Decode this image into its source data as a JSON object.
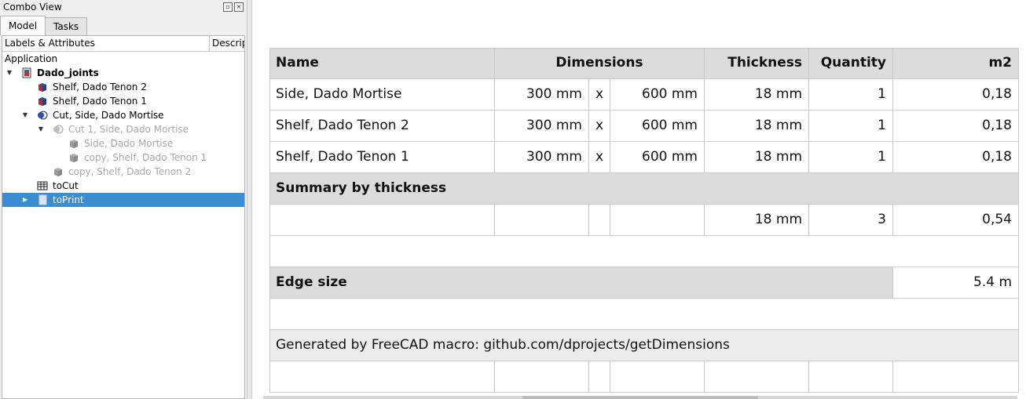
{
  "combo": {
    "title": "Combo View",
    "tabs": [
      {
        "label": "Model"
      },
      {
        "label": "Tasks"
      }
    ],
    "tree_headers": [
      "Labels & Attributes",
      "Description"
    ],
    "tree_items": [
      {
        "label": "Application",
        "depth": 0,
        "icon": "none",
        "arrow": "none",
        "state": "normal"
      },
      {
        "label": "Dado_joints",
        "depth": 1,
        "icon": "document-icon",
        "arrow": "expanded",
        "state": "bold"
      },
      {
        "label": "Shelf, Dado Tenon 2",
        "depth": 2,
        "icon": "part-box-icon",
        "arrow": "none",
        "state": "normal"
      },
      {
        "label": "Shelf, Dado Tenon 1",
        "depth": 2,
        "icon": "part-box-icon",
        "arrow": "none",
        "state": "normal"
      },
      {
        "label": "Cut, Side, Dado Mortise",
        "depth": 2,
        "icon": "cut-icon",
        "arrow": "expanded",
        "state": "normal"
      },
      {
        "label": "Cut 1, Side, Dado Mortise",
        "depth": 3,
        "icon": "cut-icon",
        "arrow": "expanded",
        "state": "disabled"
      },
      {
        "label": "Side, Dado Mortise",
        "depth": 4,
        "icon": "part-box-icon",
        "arrow": "none",
        "state": "disabled"
      },
      {
        "label": "copy, Shelf, Dado Tenon 1",
        "depth": 4,
        "icon": "part-box-icon",
        "arrow": "none",
        "state": "disabled"
      },
      {
        "label": "copy, Shelf, Dado Tenon 2",
        "depth": 3,
        "icon": "part-box-icon",
        "arrow": "none",
        "state": "disabled"
      },
      {
        "label": "toCut",
        "depth": 2,
        "icon": "spreadsheet-icon",
        "arrow": "none",
        "state": "normal"
      },
      {
        "label": "toPrint",
        "depth": 2,
        "icon": "page-icon",
        "arrow": "collapsed",
        "state": "selected"
      }
    ]
  },
  "sheet": {
    "header": {
      "name": "Name",
      "dimensions": "Dimensions",
      "thickness": "Thickness",
      "quantity": "Quantity",
      "area": "m2"
    },
    "rows": [
      {
        "name": "Side, Dado Mortise",
        "dim1": "300 mm",
        "x": "x",
        "dim2": "600 mm",
        "thickness": "18 mm",
        "quantity": "1",
        "area": "0,18"
      },
      {
        "name": "Shelf, Dado Tenon 2",
        "dim1": "300 mm",
        "x": "x",
        "dim2": "600 mm",
        "thickness": "18 mm",
        "quantity": "1",
        "area": "0,18"
      },
      {
        "name": "Shelf, Dado Tenon 1",
        "dim1": "300 mm",
        "x": "x",
        "dim2": "600 mm",
        "thickness": "18 mm",
        "quantity": "1",
        "area": "0,18"
      }
    ],
    "summary_title": "Summary by thickness",
    "summary": {
      "thickness": "18 mm",
      "quantity": "3",
      "area": "0,54"
    },
    "edge_label": "Edge size",
    "edge_value": "5.4 m",
    "footer": "Generated by FreeCAD macro: github.com/dprojects/getDimensions"
  },
  "colors": {
    "selection": "#3a8dd0",
    "header_bg": "#dcdcdc",
    "grid_line": "#c8c8c8"
  }
}
